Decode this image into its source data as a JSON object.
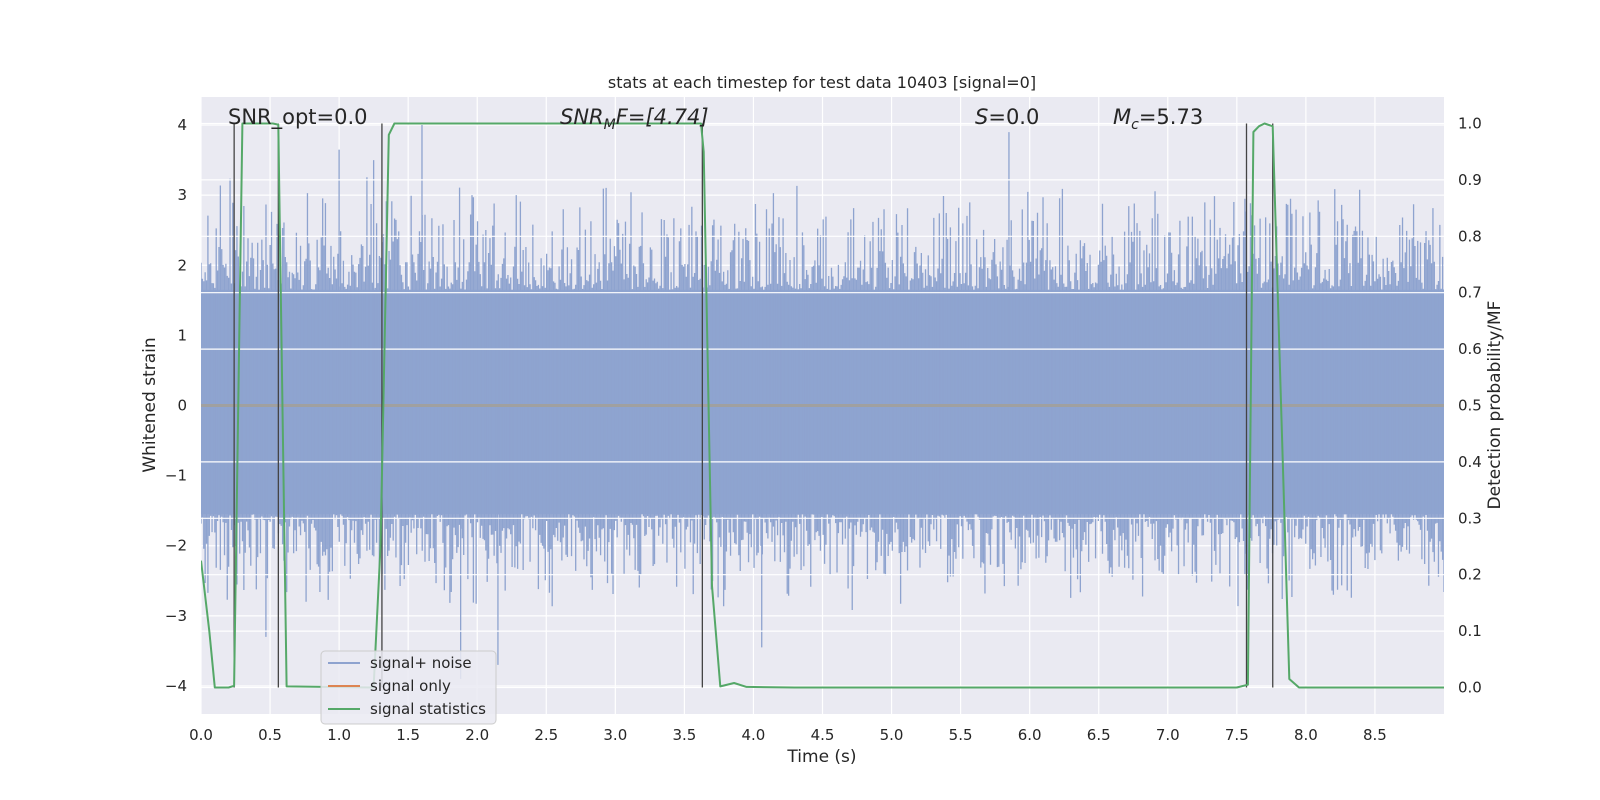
{
  "chart_data": {
    "type": "line",
    "title": "stats at each timestep for test data 10403 [signal=0]",
    "xlabel": "Time (s)",
    "ylabel_left": "Whitened strain",
    "ylabel_right": "Detection probability/MF",
    "xlim": [
      0.0,
      9.0
    ],
    "ylim_left": [
      -4.4,
      4.4
    ],
    "ylim_right": [
      -0.047,
      1.047
    ],
    "x_ticks": [
      "0.0",
      "0.5",
      "1.0",
      "1.5",
      "2.0",
      "2.5",
      "3.0",
      "3.5",
      "4.0",
      "4.5",
      "5.0",
      "5.5",
      "6.0",
      "6.5",
      "7.0",
      "7.5",
      "8.0",
      "8.5"
    ],
    "x_tick_values": [
      0.0,
      0.5,
      1.0,
      1.5,
      2.0,
      2.5,
      3.0,
      3.5,
      4.0,
      4.5,
      5.0,
      5.5,
      6.0,
      6.5,
      7.0,
      7.5,
      8.0,
      8.5
    ],
    "y_left_ticks": [
      "4",
      "3",
      "2",
      "1",
      "0",
      "−1",
      "−2",
      "−3",
      "−4"
    ],
    "y_left_tick_values": [
      4,
      3,
      2,
      1,
      0,
      -1,
      -2,
      -3,
      -4
    ],
    "y_right_ticks": [
      "1.0",
      "0.9",
      "0.8",
      "0.7",
      "0.6",
      "0.5",
      "0.4",
      "0.3",
      "0.2",
      "0.1",
      "0.0"
    ],
    "y_right_tick_values": [
      1.0,
      0.9,
      0.8,
      0.7,
      0.6,
      0.5,
      0.4,
      0.3,
      0.2,
      0.1,
      0.0
    ],
    "annotations": {
      "snr_opt": "SNR_opt=0.0",
      "snr_mf_prefix": "SNR",
      "snr_mf_sub": "M",
      "snr_mf_rest": "F=[4.74]",
      "s_label": "S",
      "s_value": "=0.0",
      "mc_prefix": "M",
      "mc_sub": "c",
      "mc_value": "=5.73"
    },
    "legend": {
      "location": "lower-left",
      "entries": [
        "signal+ noise",
        "signal only",
        "signal statistics"
      ]
    },
    "series": [
      {
        "name": "signal+ noise",
        "kind": "noise-band",
        "color": "#8ea3cf",
        "core_range": [
          -1.55,
          1.65
        ],
        "typical_peak_range": [
          -2.9,
          3.2
        ],
        "notable_peaks": [
          {
            "x": 1.6,
            "y": 4.0
          },
          {
            "x": 5.85,
            "y": 3.9
          },
          {
            "x": 1.0,
            "y": 3.65
          },
          {
            "x": 1.25,
            "y": 3.5
          },
          {
            "x": 2.15,
            "y": -3.7
          },
          {
            "x": 1.88,
            "y": -3.9
          },
          {
            "x": 4.06,
            "y": -3.45
          },
          {
            "x": 0.47,
            "y": -3.3
          }
        ]
      },
      {
        "name": "signal only",
        "kind": "line",
        "color": "#dd8452",
        "x": [
          0.0,
          9.0
        ],
        "y": [
          0.0,
          0.0
        ]
      },
      {
        "name": "signal statistics",
        "kind": "line",
        "axis": "right",
        "color": "#55a868",
        "x": [
          0.0,
          0.06,
          0.1,
          0.2,
          0.24,
          0.3,
          0.52,
          0.56,
          0.62,
          1.25,
          1.3,
          1.36,
          1.4,
          3.62,
          3.64,
          3.7,
          3.76,
          3.86,
          3.95,
          4.3,
          7.5,
          7.58,
          7.62,
          7.66,
          7.7,
          7.76,
          7.88,
          7.95,
          9.0
        ],
        "y": [
          0.225,
          0.1,
          0.0,
          0.0,
          0.003,
          1.0,
          1.0,
          0.998,
          0.002,
          0.0,
          0.25,
          0.98,
          1.0,
          1.0,
          0.95,
          0.18,
          0.002,
          0.008,
          0.001,
          0.0,
          0.0,
          0.005,
          0.985,
          0.995,
          1.0,
          0.995,
          0.015,
          0.0,
          0.0
        ]
      }
    ],
    "vertical_markers": [
      0.24,
      0.56,
      1.31,
      3.63,
      7.57,
      7.76
    ]
  }
}
